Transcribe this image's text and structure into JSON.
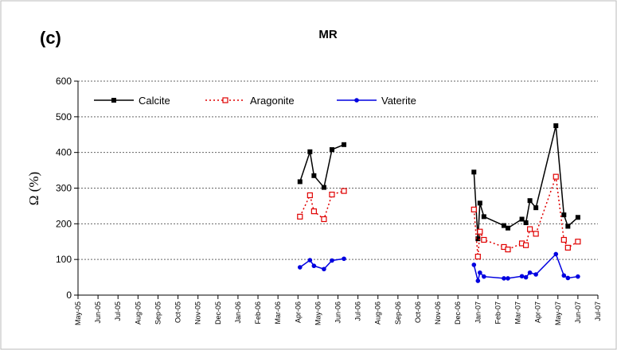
{
  "chart_data": {
    "type": "line",
    "title": "MR",
    "panel_label": "(c)",
    "y_label": "Ω (%)",
    "x": [
      11.1,
      11.6,
      11.8,
      12.3,
      12.7,
      13.3,
      null,
      19.8,
      20.0,
      20.1,
      20.3,
      21.3,
      21.5,
      22.2,
      22.4,
      22.6,
      22.9,
      23.9,
      24.3,
      24.5,
      25.0
    ],
    "series": [
      {
        "name": "Calcite",
        "color": "#000000",
        "marker": "square-filled",
        "dash": "solid",
        "values": [
          318,
          402,
          335,
          302,
          408,
          422,
          null,
          345,
          158,
          258,
          220,
          195,
          188,
          213,
          203,
          265,
          245,
          475,
          225,
          193,
          218
        ]
      },
      {
        "name": "Aragonite",
        "color": "#e00000",
        "marker": "square-open",
        "dash": "dotted",
        "values": [
          220,
          280,
          235,
          213,
          282,
          292,
          null,
          240,
          108,
          178,
          155,
          135,
          128,
          145,
          140,
          185,
          172,
          332,
          155,
          133,
          150
        ]
      },
      {
        "name": "Vaterite",
        "color": "#0000e0",
        "marker": "circle-filled",
        "dash": "solid",
        "values": [
          78,
          98,
          82,
          73,
          97,
          102,
          null,
          85,
          40,
          63,
          52,
          47,
          47,
          53,
          50,
          63,
          58,
          115,
          55,
          48,
          52
        ]
      }
    ],
    "xlim": [
      0,
      26
    ],
    "xticks": [
      {
        "value": 0,
        "label": "May-05"
      },
      {
        "value": 1,
        "label": "Jun-05"
      },
      {
        "value": 2,
        "label": "Jul-05"
      },
      {
        "value": 3,
        "label": "Aug-05"
      },
      {
        "value": 4,
        "label": "Sep-05"
      },
      {
        "value": 5,
        "label": "Oct-05"
      },
      {
        "value": 6,
        "label": "Nov-05"
      },
      {
        "value": 7,
        "label": "Dec-05"
      },
      {
        "value": 8,
        "label": "Jan-06"
      },
      {
        "value": 9,
        "label": "Feb-06"
      },
      {
        "value": 10,
        "label": "Mar-06"
      },
      {
        "value": 11,
        "label": "Apr-06"
      },
      {
        "value": 12,
        "label": "May-06"
      },
      {
        "value": 13,
        "label": "Jun-06"
      },
      {
        "value": 14,
        "label": "Jul-06"
      },
      {
        "value": 15,
        "label": "Aug-06"
      },
      {
        "value": 16,
        "label": "Sep-06"
      },
      {
        "value": 17,
        "label": "Oct-06"
      },
      {
        "value": 18,
        "label": "Nov-06"
      },
      {
        "value": 19,
        "label": "Dec-06"
      },
      {
        "value": 20,
        "label": "Jan-07"
      },
      {
        "value": 21,
        "label": "Feb-07"
      },
      {
        "value": 22,
        "label": "Mar-07"
      },
      {
        "value": 23,
        "label": "Apr-07"
      },
      {
        "value": 24,
        "label": "May-07"
      },
      {
        "value": 25,
        "label": "Jun-07"
      },
      {
        "value": 26,
        "label": "Jul-07"
      }
    ],
    "ylim": [
      0,
      600
    ],
    "yticks": [
      0,
      100,
      200,
      300,
      400,
      500,
      600
    ],
    "grid": true,
    "legend": "top-left"
  }
}
